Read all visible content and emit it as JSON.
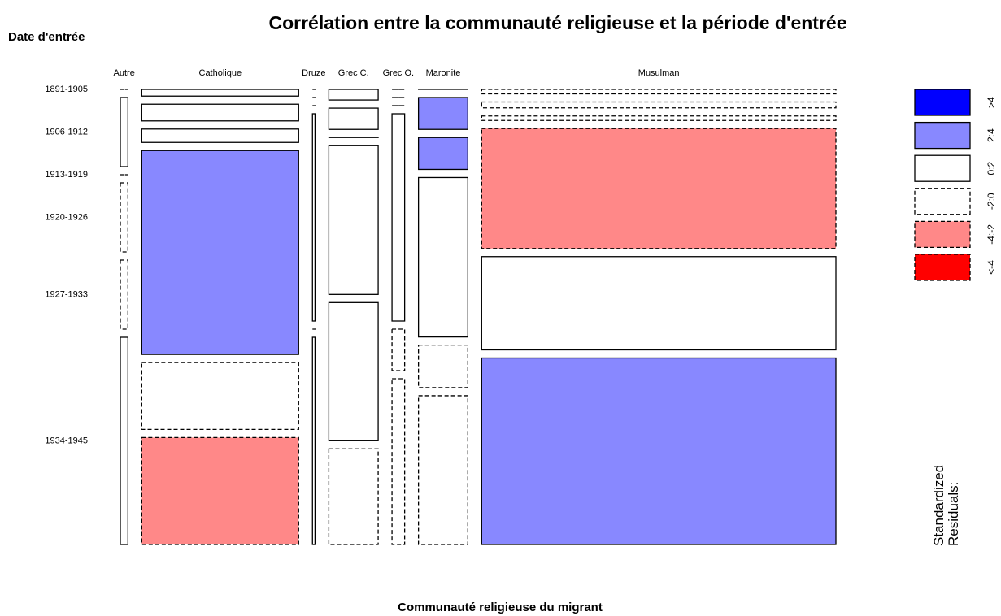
{
  "chart_data": {
    "type": "mosaic",
    "title": "Corrélation entre la communauté religieuse et la période d'entrée",
    "x_label": "Communauté religieuse du migrant",
    "y_label": "Date d'entrée",
    "categories": [
      "Autre",
      "Catholique",
      "Druze",
      "Grec C.",
      "Grec O.",
      "Maronite",
      "Musulman"
    ],
    "rows": [
      "1891-1905",
      "1906-1912",
      "1913-1919",
      "1920-1926",
      "1927-1933",
      "1934-1945"
    ],
    "values": [
      [
        0,
        1,
        0,
        1,
        1,
        3
      ],
      [
        2,
        5,
        4,
        61,
        20,
        32
      ],
      [
        0,
        0,
        0,
        1,
        0,
        1
      ],
      [
        1,
        2,
        0,
        14,
        13,
        9
      ],
      [
        0,
        0,
        0,
        5,
        1,
        4
      ],
      [
        0,
        3,
        3,
        15,
        4,
        14
      ],
      [
        3,
        4,
        3,
        81,
        63,
        126
      ]
    ],
    "residuals": [
      [
        "-2:0",
        "0:2",
        "-2:0",
        "-2:0",
        "-2:0",
        "0:2"
      ],
      [
        "0:2",
        "0:2",
        "0:2",
        "2:4",
        "-2:0",
        "-4:-2"
      ],
      [
        "-2:0",
        "-2:0",
        "-2:0",
        "0:2",
        "-2:0",
        "0:2"
      ],
      [
        "0:2",
        "0:2",
        "-2:0",
        "0:2",
        "0:2",
        "-2:0"
      ],
      [
        "-2:0",
        "-2:0",
        "-2:0",
        "0:2",
        "-2:0",
        "-2:0"
      ],
      [
        "-2:0",
        "2:4",
        "2:4",
        "0:2",
        "-2:0",
        "-2:0"
      ],
      [
        "-2:0",
        "-2:0",
        "-2:0",
        "-4:-2",
        "0:2",
        "2:4"
      ]
    ],
    "legend_title": "Standardized Residuals:",
    "legend": [
      {
        "label": ">4",
        "color": "#0000ff",
        "dashed": false
      },
      {
        "label": "2:4",
        "color": "#8888ff",
        "dashed": false
      },
      {
        "label": "0:2",
        "color": "#ffffff",
        "dashed": false
      },
      {
        "label": "-2:0",
        "color": "#ffffff",
        "dashed": true
      },
      {
        "label": "-4:-2",
        "color": "#ff8888",
        "dashed": true
      },
      {
        "label": "<-4",
        "color": "#ff0000",
        "dashed": true
      }
    ]
  }
}
